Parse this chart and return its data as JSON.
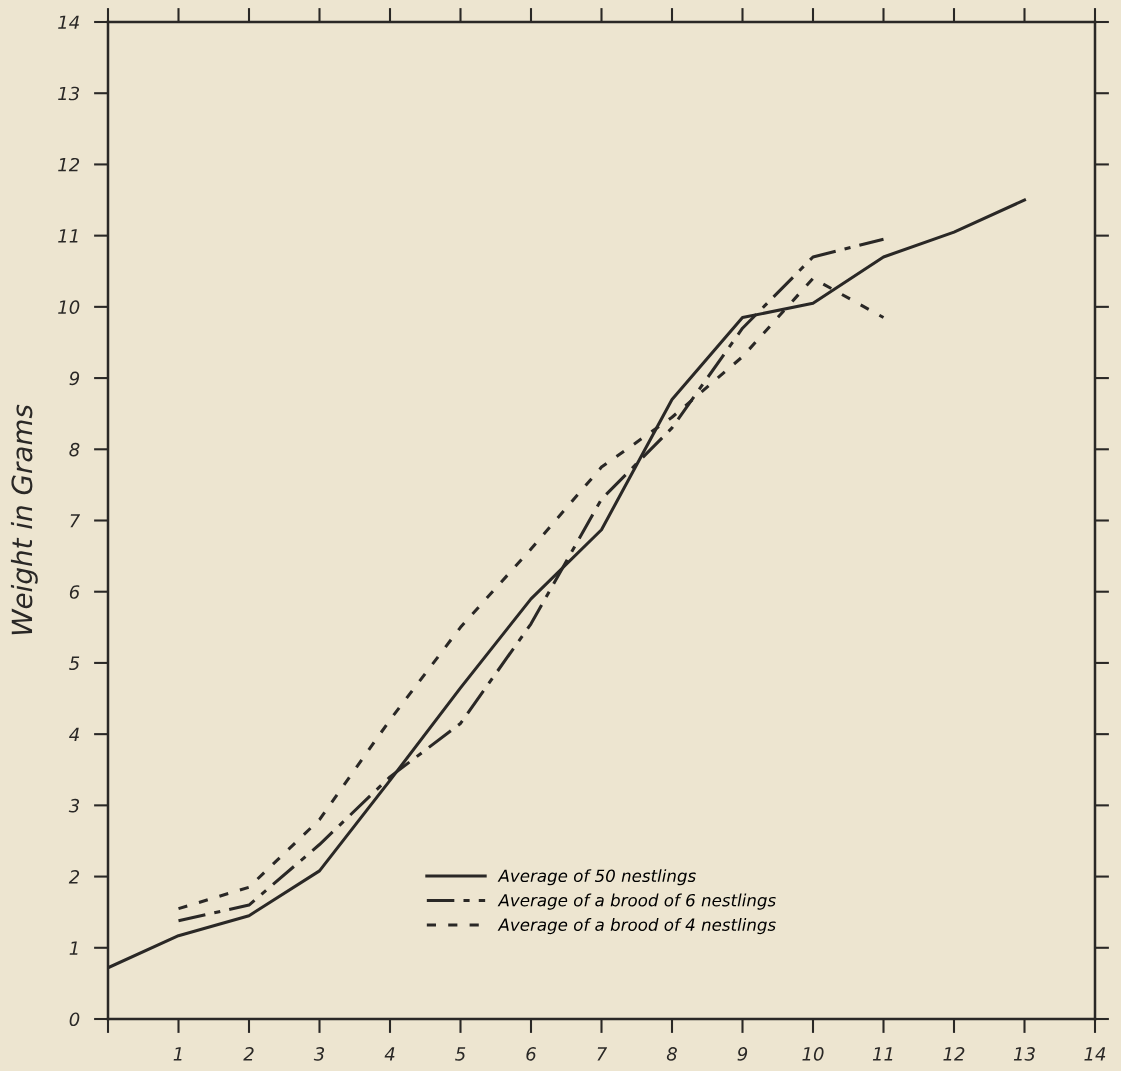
{
  "chart_data": {
    "type": "line",
    "ylabel": "Weight in Grams",
    "x": [
      0,
      1,
      2,
      3,
      4,
      5,
      6,
      7,
      8,
      9,
      10,
      11,
      12,
      13
    ],
    "series": [
      {
        "name": "Average of 50 nestlings",
        "color": "#2a2826",
        "line_style": "solid",
        "values": [
          0.72,
          1.17,
          1.45,
          2.08,
          3.35,
          4.65,
          5.9,
          6.87,
          8.7,
          9.85,
          10.05,
          10.7,
          11.05,
          11.5
        ]
      },
      {
        "name": "Average of a brood of 6 nestlings",
        "color": "#2a2826",
        "line_style": "dashed",
        "x": [
          1,
          2,
          3,
          4,
          5,
          6,
          7,
          8,
          9,
          10,
          11
        ],
        "values": [
          1.38,
          1.6,
          2.45,
          3.4,
          4.15,
          5.55,
          7.3,
          8.3,
          9.7,
          10.7,
          10.95
        ]
      },
      {
        "name": "Average of a brood of 4 nestlings",
        "color": "#2a2826",
        "line_style": "dotted",
        "x": [
          1,
          2,
          3,
          4,
          5,
          6,
          7,
          8,
          9,
          10,
          11
        ],
        "values": [
          1.55,
          1.85,
          2.8,
          4.2,
          5.5,
          6.6,
          7.75,
          8.45,
          9.3,
          10.4,
          9.85
        ]
      }
    ],
    "xlim": [
      0,
      14
    ],
    "ylim": [
      0,
      14
    ],
    "xticks": [
      {
        "value": 0,
        "label": null
      },
      1,
      2,
      3,
      4,
      5,
      6,
      7,
      8,
      9,
      10,
      11,
      12,
      13,
      14
    ],
    "yticks": [
      0,
      1,
      2,
      3,
      4,
      5,
      6,
      7,
      8,
      9,
      10,
      11,
      12,
      13,
      14
    ],
    "grid": false,
    "legend": "bottom",
    "marker": "none"
  }
}
